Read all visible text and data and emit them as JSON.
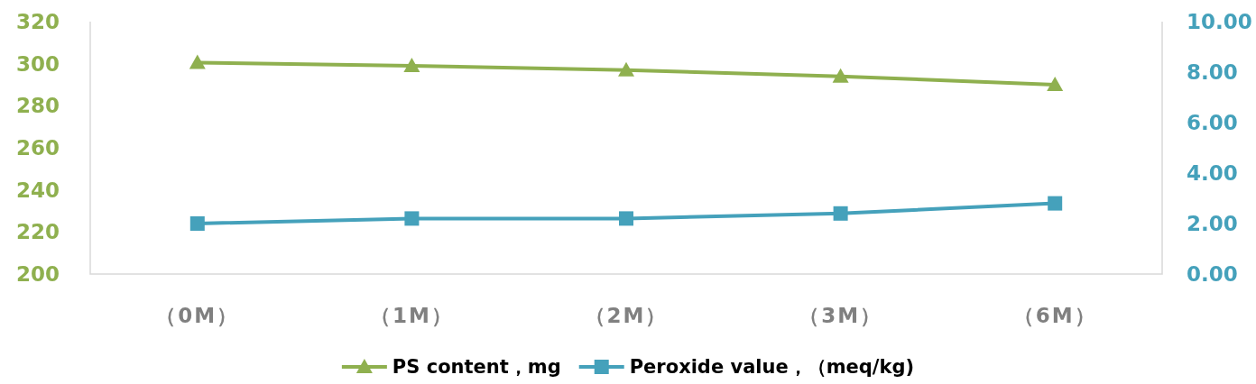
{
  "chart_data": {
    "type": "line",
    "categories": [
      "（0M）",
      "（1M）",
      "（2M）",
      "（3M）",
      "（6M）"
    ],
    "series": [
      {
        "name": "PS content，mg",
        "color": "#8fb04f",
        "marker": "triangle",
        "values": [
          300.5,
          299,
          297,
          294,
          290
        ]
      },
      {
        "name": "Peroxide value，（meq/kg)",
        "color": "#45a1bb",
        "marker": "square",
        "axis": "y2",
        "values": [
          2.0,
          2.2,
          2.2,
          2.4,
          2.8
        ]
      }
    ],
    "ylim": [
      200,
      320
    ],
    "yticks": [
      200,
      220,
      240,
      260,
      280,
      300,
      320
    ],
    "y2lim": [
      0,
      10
    ],
    "y2ticks": [
      {
        "value": 0,
        "label": "0.00"
      },
      {
        "value": 2,
        "label": "2.00"
      },
      {
        "value": 4,
        "label": "4.00"
      },
      {
        "value": 6,
        "label": "6.00"
      },
      {
        "value": 8,
        "label": "8.00"
      },
      {
        "value": 10,
        "label": "10.00"
      }
    ],
    "legend": "bottom"
  }
}
